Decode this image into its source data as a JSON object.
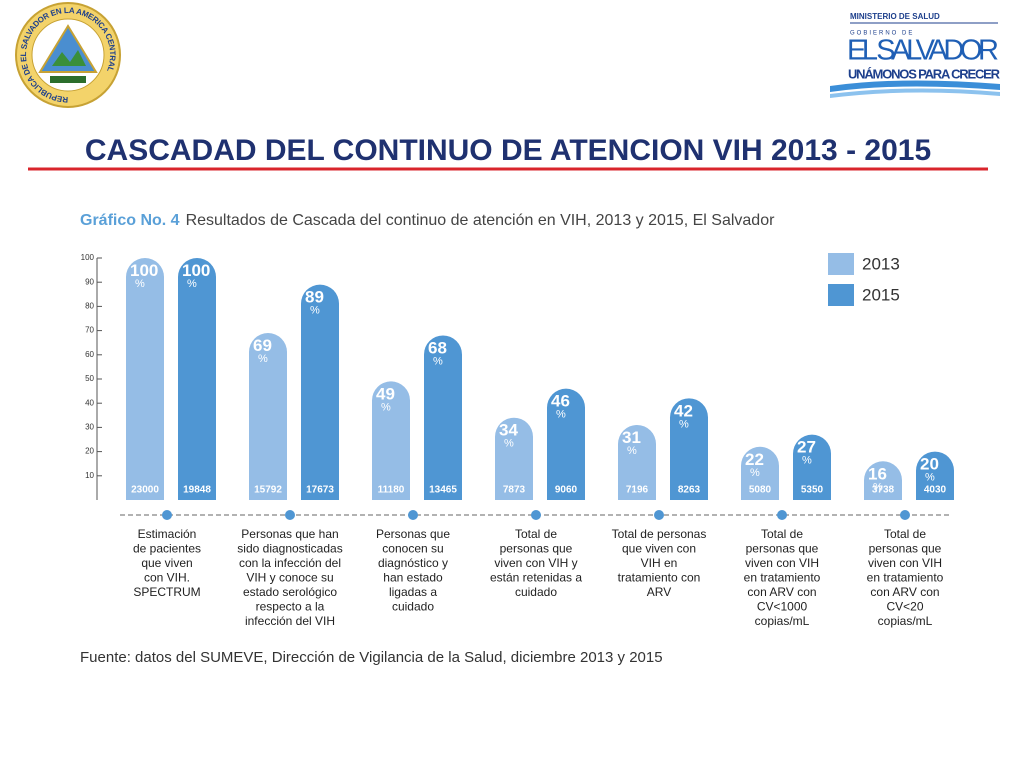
{
  "header": {
    "seal_text": "REPUBLICA DE EL SALVADOR EN LA AMERICA CENTRAL",
    "ministry": "MINISTERIO DE SALUD",
    "gobierno": "GOBIERNO DE",
    "country": "EL SALVADOR",
    "slogan": "UNÁMONOS PARA CRECER",
    "title": "CASCADAD DEL CONTINUO DE ATENCION VIH 2013 - 2015"
  },
  "chart_data": {
    "type": "bar",
    "title": "Gráfico No. 4",
    "subtitle": "Resultados de Cascada del continuo de atención en VIH, 2013 y 2015, El Salvador",
    "categories": [
      "Estimación\nde pacientes\nque viven\ncon VIH.\nSPECTRUM",
      "Personas que han\nsido diagnosticadas\ncon la infección del\nVIH y conoce su\nestado serológico\nrespecto a la\ninfección del VIH",
      "Personas que\nconocen su\ndiagnóstico y\nhan estado\nligadas a\ncuidado",
      "Total de\npersonas que\nviven con VIH y\nestán retenidas a\ncuidado",
      "Total de personas\nque viven con\nVIH en\ntratamiento con\nARV",
      "Total de\npersonas que\nviven con VIH\nen tratamiento\ncon ARV con\nCV<1000\ncopias/mL",
      "Total de\npersonas que\nviven con VIH\nen tratamiento\ncon ARV con\nCV<20\ncopias/mL"
    ],
    "series": [
      {
        "name": "2013",
        "color": "#95bde6",
        "values": [
          100,
          69,
          49,
          34,
          31,
          22,
          16
        ],
        "value_labels": [
          "100%",
          "69%",
          "49%",
          "34%",
          "31%",
          "22%",
          "16%"
        ],
        "counts": [
          23000,
          15792,
          11180,
          7873,
          7196,
          5080,
          3738
        ]
      },
      {
        "name": "2015",
        "color": "#4f96d3",
        "values": [
          100,
          89,
          68,
          46,
          42,
          27,
          20
        ],
        "value_labels": [
          "100%",
          "89%",
          "68%",
          "46%",
          "42%",
          "27%",
          "20%"
        ],
        "counts": [
          19848,
          17673,
          13465,
          9060,
          8263,
          5350,
          4030
        ]
      }
    ],
    "ylim": [
      0,
      100
    ],
    "yticks": [
      10,
      20,
      30,
      40,
      50,
      60,
      70,
      80,
      90,
      100
    ],
    "legend": "top-right",
    "source": "Fuente: datos del SUMEVE, Dirección de Vigilancia de la Salud, diciembre 2013 y 2015"
  }
}
